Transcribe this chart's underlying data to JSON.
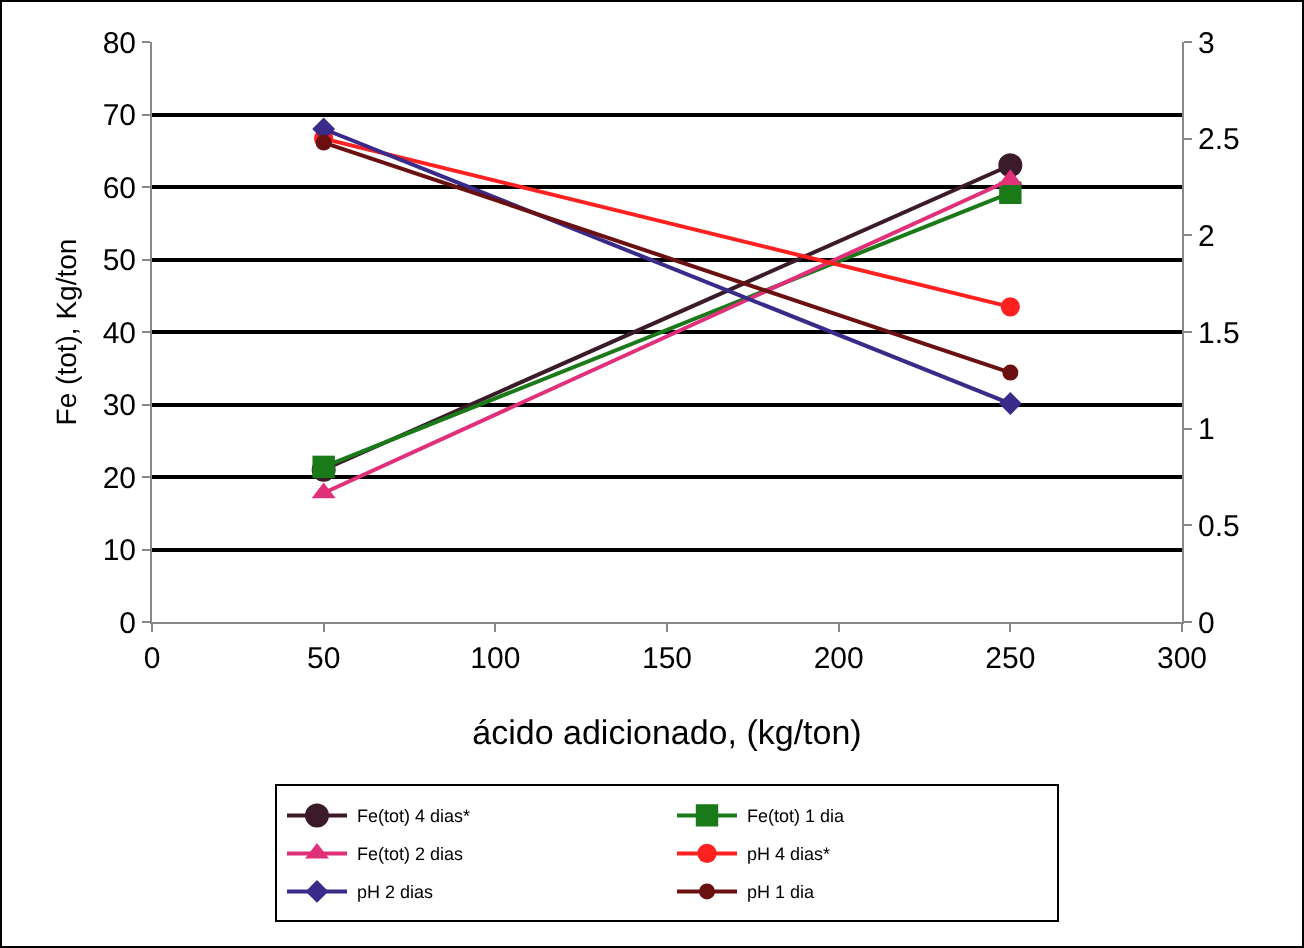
{
  "chart_data": {
    "type": "line",
    "xlabel": "ácido adicionado, (kg/ton)",
    "ylabel": "Fe (tot), Kg/ton",
    "x": [
      50,
      250
    ],
    "xlim": [
      0,
      300
    ],
    "xticks": [
      0,
      50,
      100,
      150,
      200,
      250,
      300
    ],
    "ylim": [
      0,
      80
    ],
    "yticks": [
      0,
      10,
      20,
      30,
      40,
      50,
      60,
      70,
      80
    ],
    "y2lim": [
      0,
      3
    ],
    "y2ticks": [
      0,
      0.5,
      1,
      1.5,
      2,
      2.5,
      3
    ],
    "grid": "y",
    "legend": "bottom",
    "series": [
      {
        "name": "Fe(tot) 4 dias*",
        "color": "#3b1a2a",
        "marker": "circle",
        "values": [
          21,
          63
        ]
      },
      {
        "name": "Fe(tot) 1 dia",
        "color": "#1a7a1a",
        "marker": "square",
        "values": [
          21.4,
          59.2
        ]
      },
      {
        "name": "Fe(tot) 2 dias",
        "color": "#e0307a",
        "marker": "triangle",
        "values": [
          17.8,
          61
        ]
      },
      {
        "name": "pH 4 dias*",
        "color": "#ff2020",
        "marker": "circle",
        "axis": "y2",
        "values": [
          2.5,
          1.63
        ]
      },
      {
        "name": "pH 2 dias",
        "color": "#3a2a8a",
        "marker": "diamond",
        "axis": "y2",
        "values": [
          2.55,
          1.13
        ]
      },
      {
        "name": "pH 1 dia",
        "color": "#6a1010",
        "marker": "circle",
        "axis": "y2",
        "values": [
          2.48,
          1.29
        ]
      }
    ]
  }
}
